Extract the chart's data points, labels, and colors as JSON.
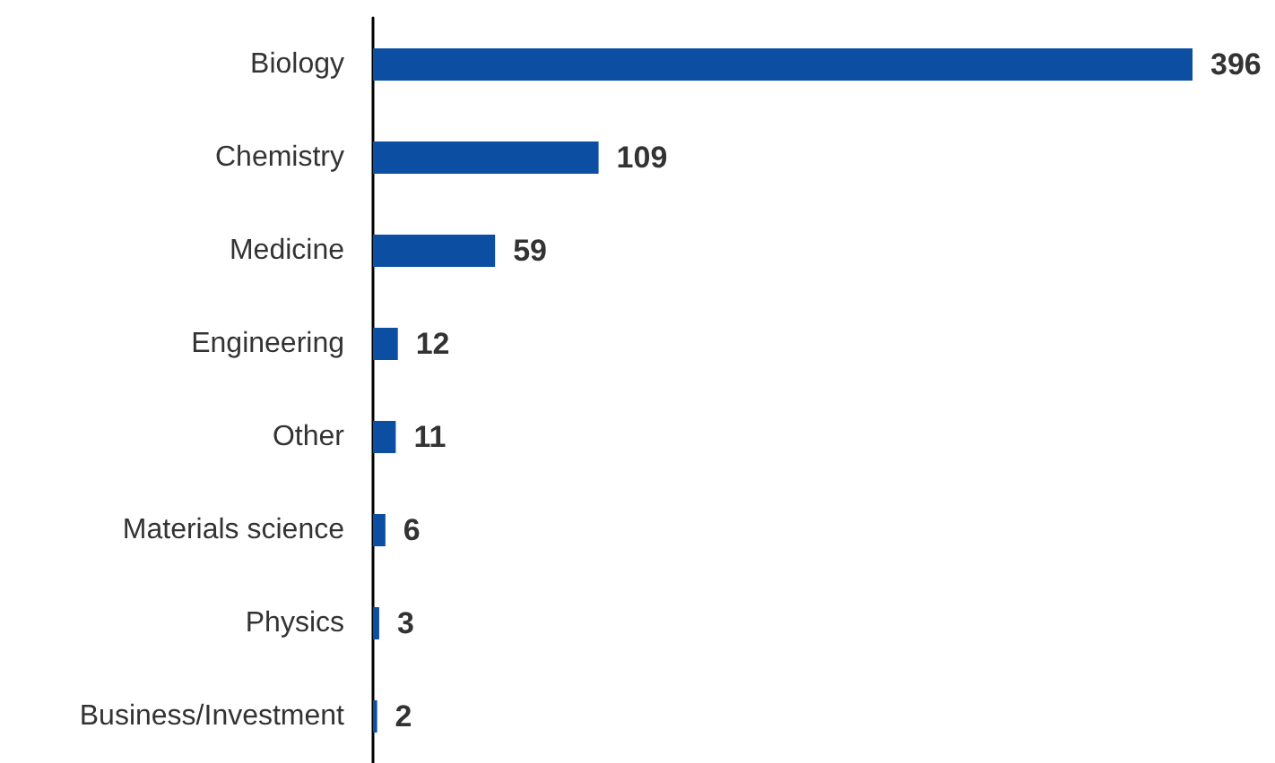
{
  "chart_data": {
    "type": "bar",
    "orientation": "horizontal",
    "categories": [
      "Biology",
      "Chemistry",
      "Medicine",
      "Engineering",
      "Other",
      "Materials science",
      "Physics",
      "Business/Investment"
    ],
    "values": [
      396,
      109,
      59,
      12,
      11,
      6,
      3,
      2
    ],
    "color": "#0b4ea2",
    "data_labels": true
  }
}
